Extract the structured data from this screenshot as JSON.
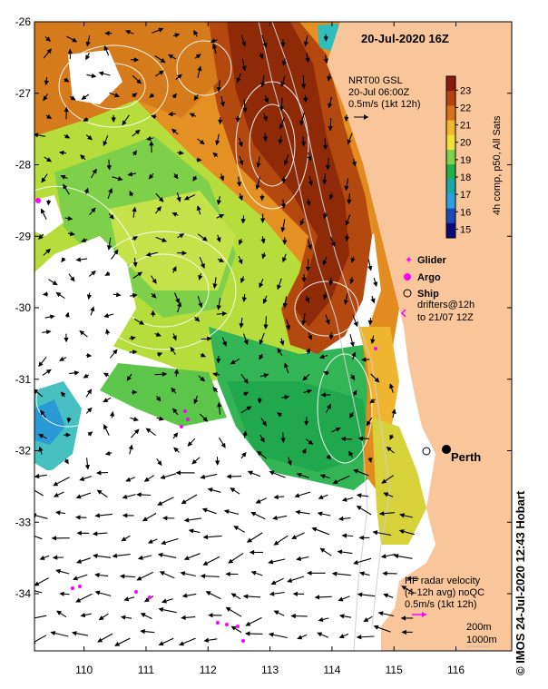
{
  "title": "20-Jul-2020 16Z",
  "product": {
    "name": "NRT00 GSL",
    "time": "20-Jul 06:00Z",
    "scale": "0.5m/s (1kt 12h)"
  },
  "colorbar": {
    "label": "4h comp, p50, All Sats",
    "ticks": [
      "23",
      "22",
      "21",
      "20",
      "19",
      "18",
      "17",
      "16",
      "15"
    ],
    "range": [
      14.5,
      23.8
    ],
    "colors": [
      "#8b1a0a",
      "#b8420f",
      "#d9701a",
      "#eeb830",
      "#f2e13a",
      "#7fd24a",
      "#22b04a",
      "#18a8a8",
      "#2aa0e0",
      "#1a4ab8",
      "#0a0a7a"
    ]
  },
  "legend": {
    "glider": "Glider",
    "argo": "Argo",
    "ship": "Ship",
    "drifters_line1": "drifters@12h",
    "drifters_line2": "to 21/07 12Z"
  },
  "hf_radar": {
    "line1": "HF radar velocity",
    "line2": "(4-12h avg) noQC",
    "line3": "0.5m/s (1kt 12h)"
  },
  "isobaths": {
    "shallow": "200m",
    "deep": "1000m"
  },
  "place": "Perth",
  "credit": "© IMOS 24-Jul-2020 12:43 Hobart",
  "axes": {
    "x_ticks": [
      "110",
      "111",
      "112",
      "113",
      "114",
      "115",
      "116"
    ],
    "y_ticks": [
      "-26",
      "-27",
      "-28",
      "-29",
      "-30",
      "-31",
      "-32",
      "-33",
      "-34"
    ],
    "lon_range": [
      109.2,
      116.9
    ],
    "lat_range": [
      -26.0,
      -34.8
    ]
  },
  "colors": {
    "land": "#f9c69b",
    "no_data": "#ffffff",
    "marker": "#ff00ff"
  }
}
